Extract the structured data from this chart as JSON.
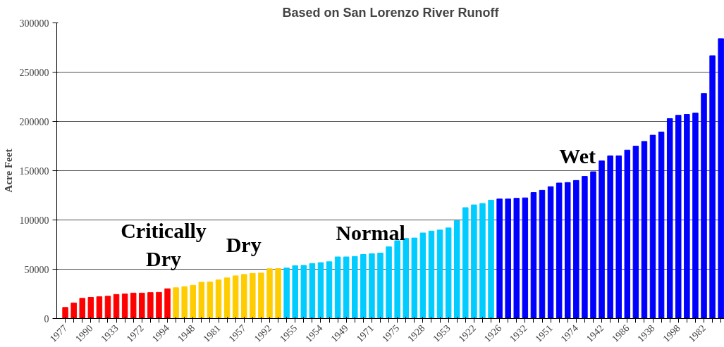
{
  "chart_data": {
    "type": "bar",
    "title": "Based on San Lorenzo River Runoff",
    "ylabel": "Acre Feet",
    "categories": [
      "1977",
      null,
      null,
      "1990",
      null,
      null,
      "1933",
      null,
      null,
      "1972",
      null,
      null,
      "1994",
      null,
      null,
      "1948",
      null,
      null,
      "1981",
      null,
      null,
      "1957",
      null,
      null,
      "1992",
      null,
      null,
      "1955",
      null,
      null,
      "1954",
      null,
      null,
      "1949",
      null,
      null,
      "1971",
      null,
      null,
      "1975",
      null,
      null,
      "1928",
      null,
      null,
      "1953",
      null,
      null,
      "1922",
      null,
      null,
      "1926",
      null,
      null,
      "1932",
      null,
      null,
      "1951",
      null,
      null,
      "1974",
      null,
      null,
      "1942",
      null,
      null,
      "1986",
      null,
      null,
      "1938",
      null,
      null,
      "1998",
      null,
      null,
      "1982",
      null,
      null
    ],
    "values": [
      11200,
      15800,
      20500,
      21400,
      22100,
      22600,
      24400,
      24900,
      25800,
      25800,
      26300,
      26500,
      30200,
      31200,
      32300,
      33700,
      36800,
      37000,
      39100,
      41200,
      43300,
      44700,
      45800,
      46100,
      50500,
      50700,
      51200,
      53500,
      53900,
      55800,
      56700,
      57600,
      62500,
      62500,
      63000,
      65000,
      65700,
      66400,
      72700,
      78900,
      81300,
      81700,
      86800,
      88700,
      89800,
      91900,
      99100,
      112500,
      115300,
      116700,
      120100,
      121300,
      121300,
      122000,
      122400,
      127800,
      130100,
      133800,
      137500,
      138000,
      140100,
      144200,
      148900,
      160000,
      165100,
      165100,
      170900,
      174900,
      179700,
      186000,
      189200,
      202900,
      206200,
      207100,
      208500,
      228400,
      266700,
      284000
    ],
    "colors": [
      "#ff0000",
      "#ff0000",
      "#ff0000",
      "#ff0000",
      "#ff0000",
      "#ff0000",
      "#ff0000",
      "#ff0000",
      "#ff0000",
      "#ff0000",
      "#ff0000",
      "#ff0000",
      "#ff0000",
      "#ffcc00",
      "#ffcc00",
      "#ffcc00",
      "#ffcc00",
      "#ffcc00",
      "#ffcc00",
      "#ffcc00",
      "#ffcc00",
      "#ffcc00",
      "#ffcc00",
      "#ffcc00",
      "#ffcc00",
      "#ffcc00",
      "#00ccff",
      "#00ccff",
      "#00ccff",
      "#00ccff",
      "#00ccff",
      "#00ccff",
      "#00ccff",
      "#00ccff",
      "#00ccff",
      "#00ccff",
      "#00ccff",
      "#00ccff",
      "#00ccff",
      "#00ccff",
      "#00ccff",
      "#00ccff",
      "#00ccff",
      "#00ccff",
      "#00ccff",
      "#00ccff",
      "#00ccff",
      "#00ccff",
      "#00ccff",
      "#00ccff",
      "#00ccff",
      "#0000ff",
      "#0000ff",
      "#0000ff",
      "#0000ff",
      "#0000ff",
      "#0000ff",
      "#0000ff",
      "#0000ff",
      "#0000ff",
      "#0000ff",
      "#0000ff",
      "#0000ff",
      "#0000ff",
      "#0000ff",
      "#0000ff",
      "#0000ff",
      "#0000ff",
      "#0000ff",
      "#0000ff",
      "#0000ff",
      "#0000ff",
      "#0000ff",
      "#0000ff",
      "#0000ff",
      "#0000ff",
      "#0000ff",
      "#0000ff"
    ],
    "ylim": [
      0,
      300000
    ],
    "yticks": [
      0,
      50000,
      100000,
      150000,
      200000,
      250000,
      300000
    ],
    "grid": "y",
    "annotations": [
      "Critically Dry",
      "Dry",
      "Normal",
      "Wet"
    ]
  }
}
